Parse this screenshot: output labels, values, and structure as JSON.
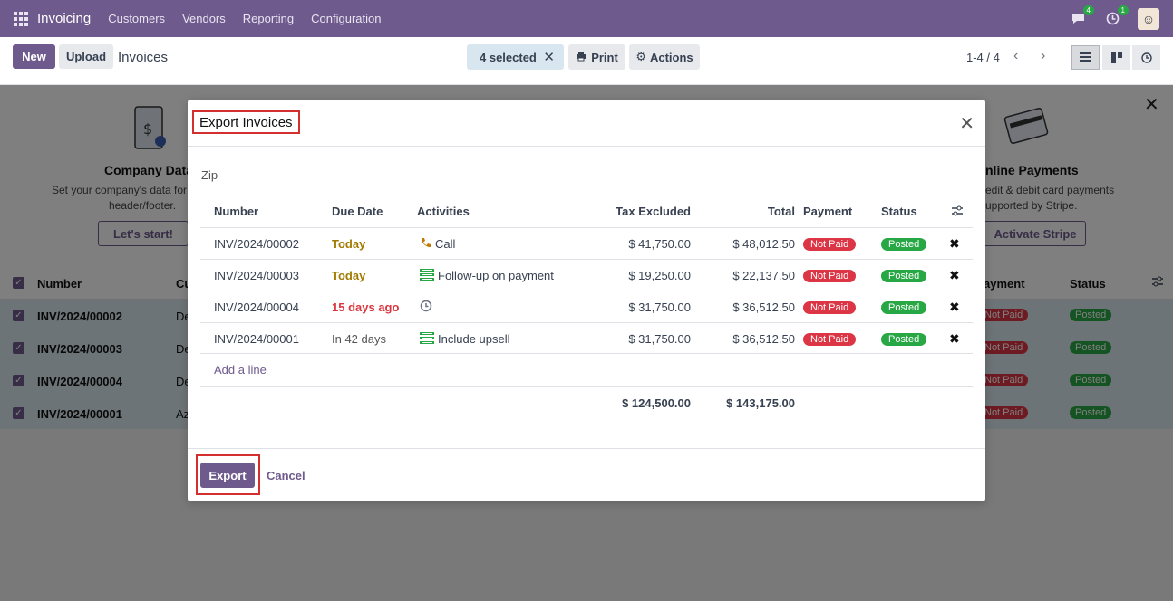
{
  "navbar": {
    "brand": "Invoicing",
    "menu": [
      "Customers",
      "Vendors",
      "Reporting",
      "Configuration"
    ],
    "chat_count": "4",
    "activity_count": "1"
  },
  "control": {
    "new_label": "New",
    "upload_label": "Upload",
    "breadcrumb": "Invoices",
    "selected_label": "4 selected",
    "print_label": "Print",
    "actions_label": "Actions",
    "pager": "1-4 / 4"
  },
  "background": {
    "onboarding": {
      "left_title": "Company Data",
      "left_text": "Set your company's data for",
      "left_text2": "header/footer.",
      "left_button": "Let's start!",
      "right_title": "nline Payments",
      "right_text": "edit & debit card payments",
      "right_text2": "upported by Stripe.",
      "right_button": "Activate Stripe"
    },
    "list_headers": {
      "number": "Number",
      "cust": "Cu",
      "payment": "ayment",
      "status": "Status"
    },
    "rows": [
      {
        "number": "INV/2024/00002",
        "cust": "De",
        "payment": "Not Paid",
        "status": "Posted"
      },
      {
        "number": "INV/2024/00003",
        "cust": "De",
        "payment": "Not Paid",
        "status": "Posted"
      },
      {
        "number": "INV/2024/00004",
        "cust": "De",
        "payment": "Not Paid",
        "status": "Posted"
      },
      {
        "number": "INV/2024/00001",
        "cust": "Az",
        "payment": "Not Paid",
        "status": "Posted"
      }
    ]
  },
  "modal": {
    "title": "Export Invoices",
    "zip_label": "Zip",
    "headers": {
      "number": "Number",
      "due_date": "Due Date",
      "activities": "Activities",
      "tax_excluded": "Tax Excluded",
      "total": "Total",
      "payment": "Payment",
      "status": "Status"
    },
    "rows": [
      {
        "number": "INV/2024/00002",
        "due": "Today",
        "due_type": "warn",
        "activity_icon": "phone-icon",
        "activity": "Call",
        "tax_excluded": "$ 41,750.00",
        "total": "$ 48,012.50",
        "payment": "Not Paid",
        "status": "Posted"
      },
      {
        "number": "INV/2024/00003",
        "due": "Today",
        "due_type": "warn",
        "activity_icon": "todo-icon",
        "activity": "Follow-up on payment",
        "tax_excluded": "$ 19,250.00",
        "total": "$ 22,137.50",
        "payment": "Not Paid",
        "status": "Posted"
      },
      {
        "number": "INV/2024/00004",
        "due": "15 days ago",
        "due_type": "danger",
        "activity_icon": "clock-icon",
        "activity": "",
        "tax_excluded": "$ 31,750.00",
        "total": "$ 36,512.50",
        "payment": "Not Paid",
        "status": "Posted"
      },
      {
        "number": "INV/2024/00001",
        "due": "In 42 days",
        "due_type": "normal",
        "activity_icon": "todo-icon",
        "activity": "Include upsell",
        "tax_excluded": "$ 31,750.00",
        "total": "$ 36,512.50",
        "payment": "Not Paid",
        "status": "Posted"
      }
    ],
    "add_line": "Add a line",
    "total_tax_excluded": "$ 124,500.00",
    "total_total": "$ 143,175.00",
    "export_label": "Export",
    "cancel_label": "Cancel"
  }
}
